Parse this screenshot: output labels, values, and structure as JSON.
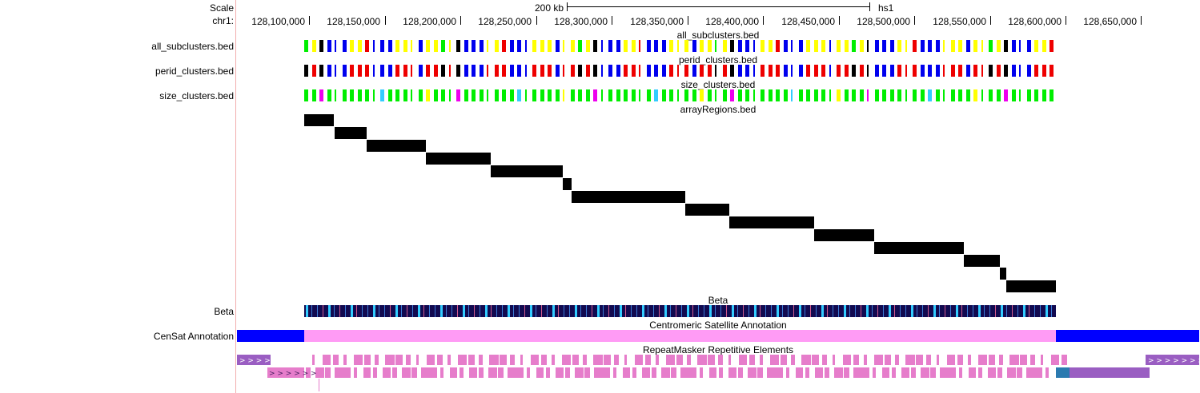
{
  "labels": {
    "scale": "Scale",
    "chrom": "chr1:",
    "scale_bar": "200 kb",
    "assembly": "hs1"
  },
  "ruler_ticks": [
    "128,100,000",
    "128,150,000",
    "128,200,000",
    "128,250,000",
    "128,300,000",
    "128,350,000",
    "128,400,000",
    "128,450,000",
    "128,500,000",
    "128,550,000",
    "128,600,000",
    "128,650,000"
  ],
  "tracks": [
    {
      "id": "all_subclusters",
      "side_label": "all_subclusters.bed",
      "title": "all_subclusters.bed"
    },
    {
      "id": "perid_clusters",
      "side_label": "perid_clusters.bed",
      "title": "perid_clusters.bed"
    },
    {
      "id": "size_clusters",
      "side_label": "size_clusters.bed",
      "title": "size_clusters.bed"
    },
    {
      "id": "arrayRegions",
      "side_label": "",
      "title": "arrayRegions.bed"
    },
    {
      "id": "beta",
      "side_label": "Beta",
      "title": "Beta"
    },
    {
      "id": "censat",
      "side_label": "CenSat Annotation",
      "title": "Centromeric Satellite Annotation"
    },
    {
      "id": "rmsk",
      "side_label": "",
      "title": "RepeatMasker Repetitive Elements"
    }
  ],
  "colors": {
    "blue": "#0000ee",
    "yellow": "#ffff00",
    "red": "#ee0000",
    "green": "#00ee00",
    "black": "#000000",
    "censat_alpha": "#ff9bf5",
    "censat_blue": "#0000ff",
    "beta_bg": "#120a50",
    "rmsk_pink": "#e67dcb",
    "rmsk_purple": "#9a5ec2"
  }
}
